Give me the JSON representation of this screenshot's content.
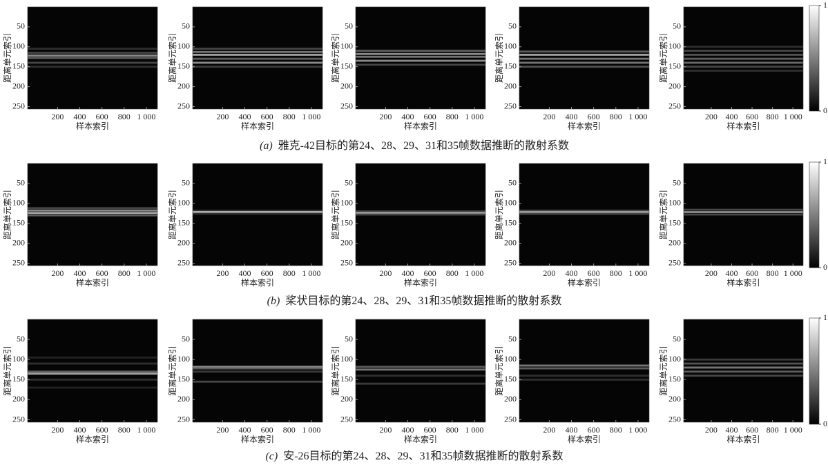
{
  "chart_data": [
    {
      "type": "heatmap",
      "xlabel": "样本索引",
      "ylabel": "距离单元索引",
      "xlim": [
        -70,
        1100
      ],
      "ylim": [
        0,
        256
      ],
      "invert_y": true,
      "xticks": [
        200,
        400,
        600,
        800,
        {
          "value": 1000,
          "label": "1 000"
        }
      ],
      "yticks": [
        50,
        100,
        150,
        200,
        250
      ],
      "colormap": "gray",
      "y": [
        105,
        115,
        122,
        128,
        140,
        150
      ],
      "values": [
        0.2,
        0.3,
        0.6,
        0.4,
        0.3,
        0.2
      ]
    },
    {
      "type": "heatmap",
      "xlabel": "样本索引",
      "ylabel": "距离单元索引",
      "xlim": [
        -70,
        1100
      ],
      "ylim": [
        0,
        256
      ],
      "invert_y": true,
      "xticks": [
        200,
        400,
        600,
        800,
        {
          "value": 1000,
          "label": "1 000"
        }
      ],
      "yticks": [
        50,
        100,
        150,
        200,
        250
      ],
      "colormap": "gray",
      "y": [
        105,
        113,
        120,
        130,
        140,
        150
      ],
      "values": [
        0.3,
        0.5,
        0.7,
        0.4,
        0.6,
        0.25
      ]
    },
    {
      "type": "heatmap",
      "xlabel": "样本索引",
      "ylabel": "距离单元索引",
      "xlim": [
        -70,
        1100
      ],
      "ylim": [
        0,
        256
      ],
      "invert_y": true,
      "xticks": [
        200,
        400,
        600,
        800,
        {
          "value": 1000,
          "label": "1 000"
        }
      ],
      "yticks": [
        50,
        100,
        150,
        200,
        250
      ],
      "colormap": "gray",
      "y": [
        110,
        118,
        125,
        135,
        145
      ],
      "values": [
        0.4,
        0.6,
        0.5,
        0.6,
        0.3
      ]
    },
    {
      "type": "heatmap",
      "xlabel": "样本索引",
      "ylabel": "距离单元索引",
      "xlim": [
        -70,
        1100
      ],
      "ylim": [
        0,
        256
      ],
      "invert_y": true,
      "xticks": [
        200,
        400,
        600,
        800,
        {
          "value": 1000,
          "label": "1 000"
        }
      ],
      "yticks": [
        50,
        100,
        150,
        200,
        250
      ],
      "colormap": "gray",
      "y": [
        112,
        120,
        130,
        140,
        150
      ],
      "values": [
        0.4,
        0.7,
        0.5,
        0.5,
        0.35
      ]
    },
    {
      "type": "heatmap",
      "xlabel": "样本索引",
      "ylabel": "距离单元索引",
      "xlim": [
        -70,
        1100
      ],
      "ylim": [
        0,
        256
      ],
      "invert_y": true,
      "xticks": [
        200,
        400,
        600,
        800,
        {
          "value": 1000,
          "label": "1 000"
        }
      ],
      "yticks": [
        50,
        100,
        150,
        200,
        250
      ],
      "colormap": "gray",
      "y": [
        100,
        110,
        120,
        130,
        140,
        150,
        160
      ],
      "values": [
        0.2,
        0.3,
        0.35,
        0.4,
        0.45,
        0.3,
        0.2
      ]
    },
    {
      "type": "heatmap",
      "xlabel": "样本索引",
      "ylabel": "距离单元索引",
      "xlim": [
        -70,
        1100
      ],
      "ylim": [
        0,
        256
      ],
      "invert_y": true,
      "xticks": [
        200,
        400,
        600,
        800,
        {
          "value": 1000,
          "label": "1 000"
        }
      ],
      "yticks": [
        50,
        100,
        150,
        200,
        250
      ],
      "colormap": "gray",
      "y": [
        112,
        118,
        124,
        130
      ],
      "values": [
        0.3,
        0.6,
        0.7,
        0.4
      ]
    },
    {
      "type": "heatmap",
      "xlabel": "样本索引",
      "ylabel": "距离单元索引",
      "xlim": [
        -70,
        1100
      ],
      "ylim": [
        0,
        256
      ],
      "invert_y": true,
      "xticks": [
        200,
        400,
        600,
        800,
        {
          "value": 1000,
          "label": "1 000"
        }
      ],
      "yticks": [
        50,
        100,
        150,
        200,
        250
      ],
      "colormap": "gray",
      "y": [
        118,
        122,
        126
      ],
      "values": [
        0.2,
        0.8,
        0.2
      ]
    },
    {
      "type": "heatmap",
      "xlabel": "样本索引",
      "ylabel": "距离单元索引",
      "xlim": [
        -70,
        1100
      ],
      "ylim": [
        0,
        256
      ],
      "invert_y": true,
      "xticks": [
        200,
        400,
        600,
        800,
        {
          "value": 1000,
          "label": "1 000"
        }
      ],
      "yticks": [
        50,
        100,
        150,
        200,
        250
      ],
      "colormap": "gray",
      "y": [
        120,
        124,
        128
      ],
      "values": [
        0.3,
        0.7,
        0.3
      ]
    },
    {
      "type": "heatmap",
      "xlabel": "样本索引",
      "ylabel": "距离单元索引",
      "xlim": [
        -70,
        1100
      ],
      "ylim": [
        0,
        256
      ],
      "invert_y": true,
      "xticks": [
        200,
        400,
        600,
        800,
        {
          "value": 1000,
          "label": "1 000"
        }
      ],
      "yticks": [
        50,
        100,
        150,
        200,
        250
      ],
      "colormap": "gray",
      "y": [
        118,
        122,
        126
      ],
      "values": [
        0.3,
        0.7,
        0.3
      ]
    },
    {
      "type": "heatmap",
      "xlabel": "样本索引",
      "ylabel": "距离单元索引",
      "xlim": [
        -70,
        1100
      ],
      "ylim": [
        0,
        256
      ],
      "invert_y": true,
      "xticks": [
        200,
        400,
        600,
        800,
        {
          "value": 1000,
          "label": "1 000"
        }
      ],
      "yticks": [
        50,
        100,
        150,
        200,
        250
      ],
      "colormap": "gray",
      "y": [
        116,
        122,
        128
      ],
      "values": [
        0.3,
        0.6,
        0.3
      ]
    },
    {
      "type": "heatmap",
      "xlabel": "样本索引",
      "ylabel": "距离单元索引",
      "xlim": [
        -70,
        1100
      ],
      "ylim": [
        0,
        256
      ],
      "invert_y": true,
      "xticks": [
        200,
        400,
        600,
        800,
        {
          "value": 1000,
          "label": "1 000"
        }
      ],
      "yticks": [
        50,
        100,
        150,
        200,
        250
      ],
      "colormap": "gray",
      "y": [
        95,
        110,
        130,
        135,
        150,
        170
      ],
      "values": [
        0.15,
        0.2,
        0.4,
        0.7,
        0.2,
        0.15
      ]
    },
    {
      "type": "heatmap",
      "xlabel": "样本索引",
      "ylabel": "距离单元索引",
      "xlim": [
        -70,
        1100
      ],
      "ylim": [
        0,
        256
      ],
      "invert_y": true,
      "xticks": [
        200,
        400,
        600,
        800,
        {
          "value": 1000,
          "label": "1 000"
        }
      ],
      "yticks": [
        50,
        100,
        150,
        200,
        250
      ],
      "colormap": "gray",
      "y": [
        118,
        122,
        130,
        155
      ],
      "values": [
        0.6,
        0.4,
        0.25,
        0.3
      ]
    },
    {
      "type": "heatmap",
      "xlabel": "样本索引",
      "ylabel": "距离单元索引",
      "xlim": [
        -70,
        1100
      ],
      "ylim": [
        0,
        256
      ],
      "invert_y": true,
      "xticks": [
        200,
        400,
        600,
        800,
        {
          "value": 1000,
          "label": "1 000"
        }
      ],
      "yticks": [
        50,
        100,
        150,
        200,
        250
      ],
      "colormap": "gray",
      "y": [
        118,
        125,
        140,
        160
      ],
      "values": [
        0.4,
        0.5,
        0.2,
        0.25
      ]
    },
    {
      "type": "heatmap",
      "xlabel": "样本索引",
      "ylabel": "距离单元索引",
      "xlim": [
        -70,
        1100
      ],
      "ylim": [
        0,
        256
      ],
      "invert_y": true,
      "xticks": [
        200,
        400,
        600,
        800,
        {
          "value": 1000,
          "label": "1 000"
        }
      ],
      "yticks": [
        50,
        100,
        150,
        200,
        250
      ],
      "colormap": "gray",
      "y": [
        115,
        122,
        140,
        150
      ],
      "values": [
        0.5,
        0.4,
        0.2,
        0.2
      ]
    },
    {
      "type": "heatmap",
      "xlabel": "样本索引",
      "ylabel": "距离单元索引",
      "xlim": [
        -70,
        1100
      ],
      "ylim": [
        0,
        256
      ],
      "invert_y": true,
      "xticks": [
        200,
        400,
        600,
        800,
        {
          "value": 1000,
          "label": "1 000"
        }
      ],
      "yticks": [
        50,
        100,
        150,
        200,
        250
      ],
      "colormap": "gray",
      "y": [
        100,
        110,
        120,
        130,
        140
      ],
      "values": [
        0.25,
        0.35,
        0.5,
        0.4,
        0.3
      ]
    }
  ],
  "colorbars": [
    {
      "ticks": [
        0,
        1
      ]
    },
    {
      "ticks": [
        0,
        1
      ]
    },
    {
      "ticks": [
        0,
        1
      ]
    }
  ],
  "captions": [
    {
      "label": "(a)",
      "text": "雅克-42目标的第24、28、29、31和35帧数据推断的散射系数"
    },
    {
      "label": "(b)",
      "text": "桨状目标的第24、28、29、31和35帧数据推断的散射系数"
    },
    {
      "label": "(c)",
      "text": "安-26目标的第24、28、29、31和35帧数据推断的散射系数"
    }
  ]
}
